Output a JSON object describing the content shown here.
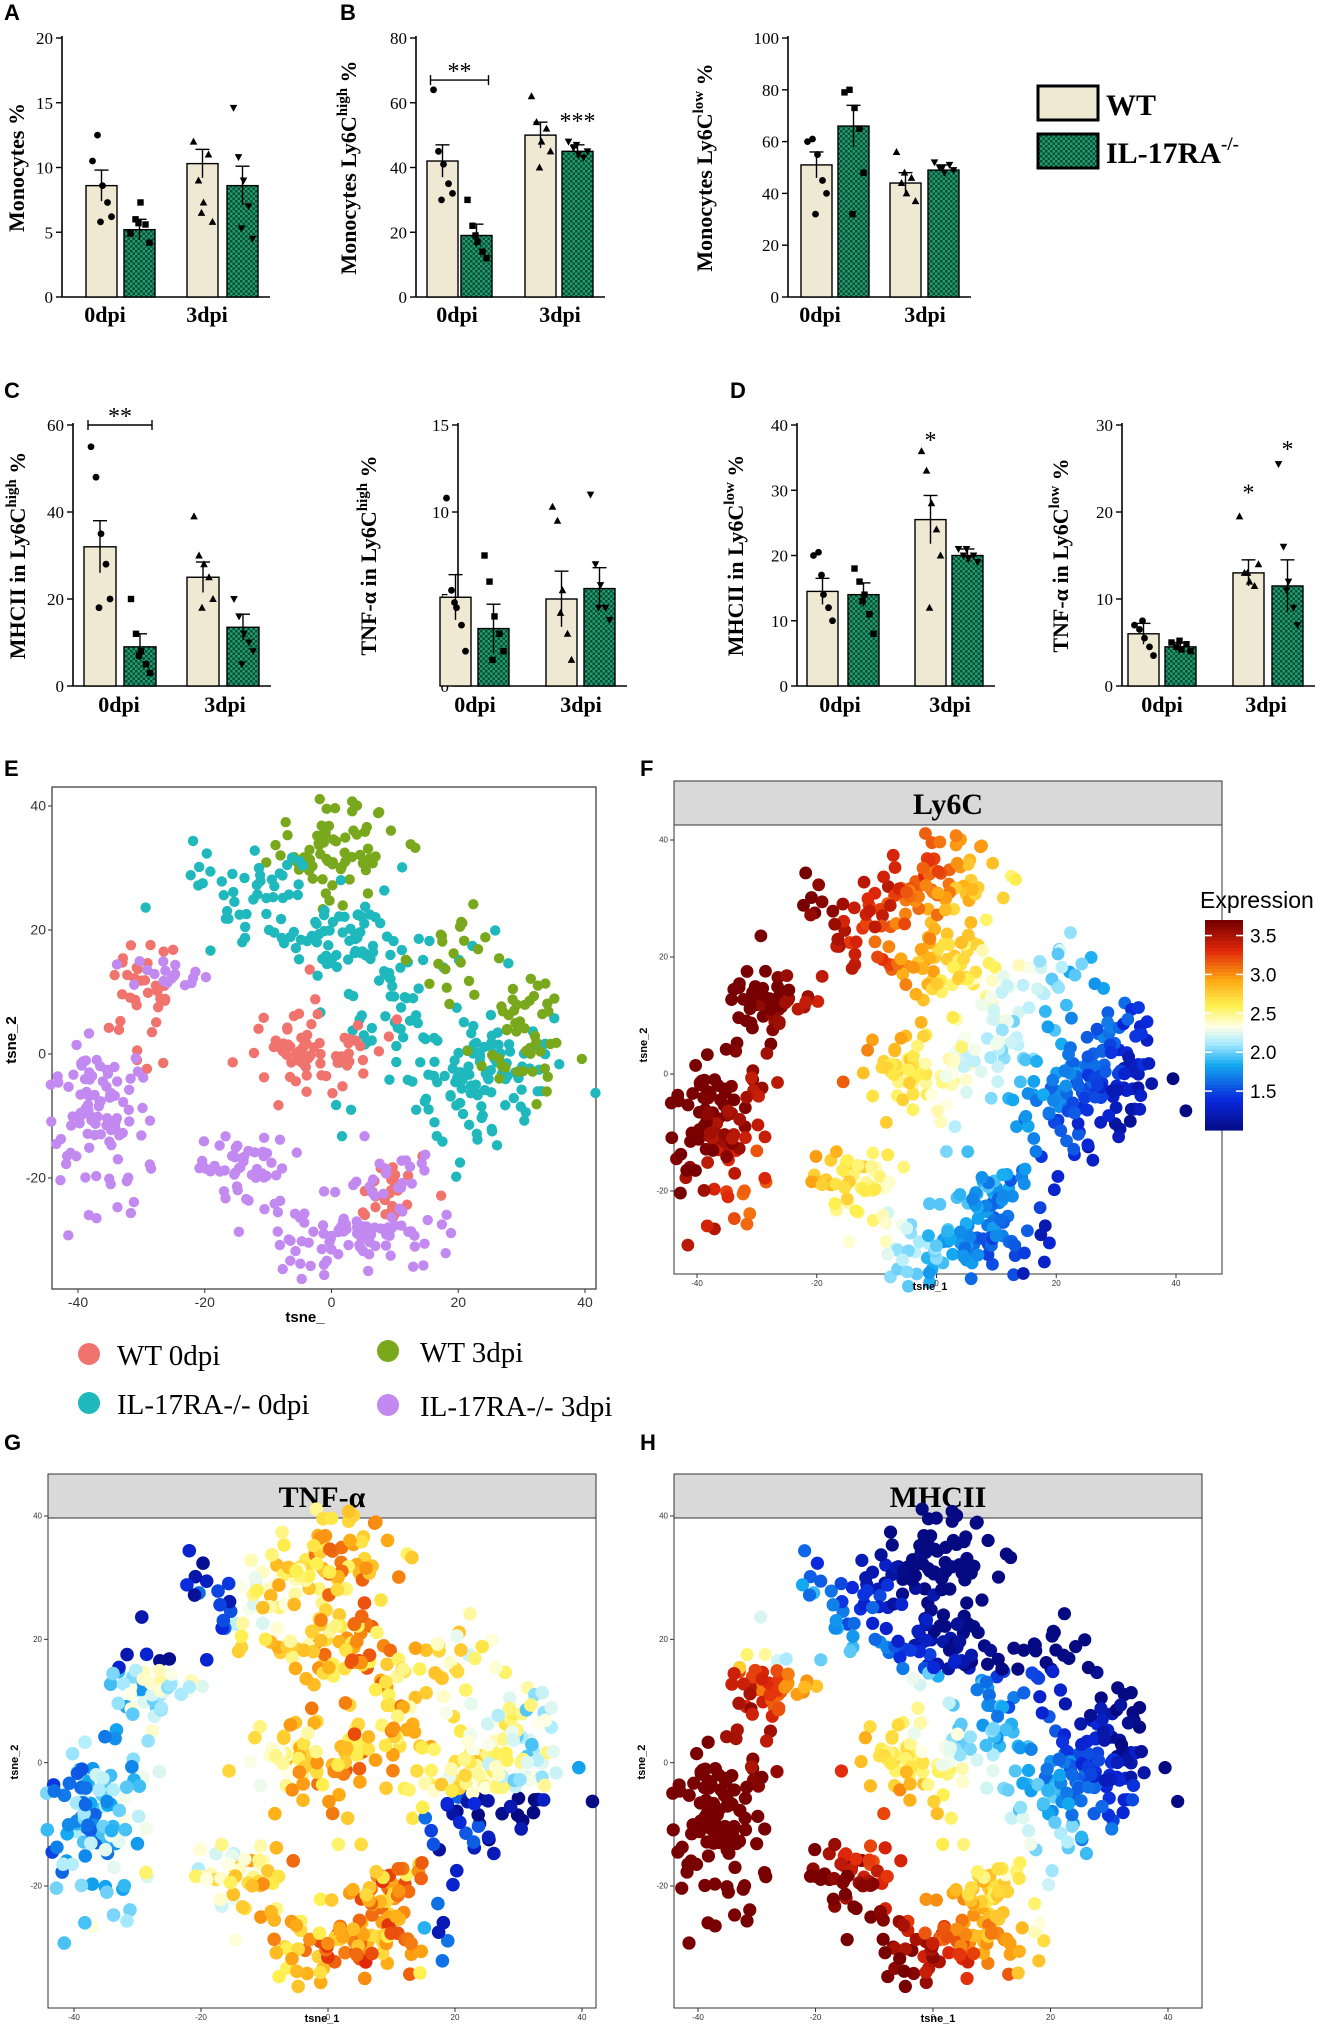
{
  "colors": {
    "wt": "#efe8d2",
    "ko": "#1f9e72",
    "ko_check": "#0b4c33",
    "wt0": "#f0736d",
    "ko0": "#1fb8bd",
    "wt3": "#7aa81c",
    "ko3": "#c28af0",
    "facet_bg": "#d9d9d9"
  },
  "legend": {
    "wt": "WT",
    "ko": "IL-17RA",
    "ko_sup": "-/-"
  },
  "chart_data": [
    {
      "id": "A",
      "panel": "A",
      "type": "bar",
      "ylabel": "Monocytes %",
      "ysup": "",
      "ylabel_after": "",
      "ylim": [
        0,
        20
      ],
      "yticks": [
        0,
        5,
        10,
        15,
        20
      ],
      "categories": [
        "0dpi",
        "3dpi"
      ],
      "series": [
        {
          "name": "WT",
          "values": [
            8.6,
            10.3
          ],
          "errors": [
            1.2,
            1.1
          ]
        },
        {
          "name": "IL-17RA-/-",
          "values": [
            5.2,
            8.6
          ],
          "errors": [
            0.8,
            1.5
          ]
        }
      ],
      "points": [
        [
          10.5,
          12.5,
          8.6,
          7.3,
          6.2,
          5.8
        ],
        [
          4.9,
          6.0,
          7.3,
          5.6,
          4.2,
          5.7
        ],
        [
          12.0,
          9.0,
          7.3,
          11.0,
          5.8,
          6.5
        ],
        [
          14.6,
          10.8,
          9.0,
          7.0,
          4.5,
          5.3
        ]
      ],
      "sig": []
    },
    {
      "id": "B1",
      "panel": "B",
      "type": "bar",
      "ylabel": "Monocytes Ly6C",
      "ysup": "high",
      "ylabel_after": " %",
      "ylim": [
        0,
        80
      ],
      "yticks": [
        0,
        20,
        40,
        60,
        80
      ],
      "categories": [
        "0dpi",
        "3dpi"
      ],
      "series": [
        {
          "name": "WT",
          "values": [
            42,
            50
          ],
          "errors": [
            5,
            4
          ]
        },
        {
          "name": "IL-17RA-/-",
          "values": [
            19,
            45
          ],
          "errors": [
            3.5,
            2
          ]
        }
      ],
      "points": [
        [
          64,
          45,
          41,
          35,
          32,
          30
        ],
        [
          30,
          22,
          17,
          14,
          12,
          19
        ],
        [
          62,
          54,
          48,
          52,
          45,
          40
        ],
        [
          48,
          46,
          44,
          43,
          45,
          47
        ]
      ],
      "sig": [
        {
          "text": "**",
          "bracket": [
            0,
            1
          ],
          "y": 67
        },
        {
          "text": "***",
          "bar": 3,
          "y": 55
        }
      ]
    },
    {
      "id": "B2",
      "panel": "",
      "type": "bar",
      "ylabel": "Monocytes Ly6C",
      "ysup": "low",
      "ylabel_after": " %",
      "ylim": [
        0,
        100
      ],
      "yticks": [
        0,
        20,
        40,
        60,
        80,
        100
      ],
      "categories": [
        "0dpi",
        "3dpi"
      ],
      "series": [
        {
          "name": "WT",
          "values": [
            51,
            44
          ],
          "errors": [
            5,
            4
          ]
        },
        {
          "name": "IL-17RA-/-",
          "values": [
            66,
            49
          ],
          "errors": [
            8,
            2
          ]
        }
      ],
      "points": [
        [
          60,
          61,
          55,
          45,
          40,
          32
        ],
        [
          79,
          80,
          73,
          65,
          48,
          32
        ],
        [
          56,
          44,
          40,
          46,
          37,
          48
        ],
        [
          52,
          50,
          48,
          51,
          49,
          50
        ]
      ],
      "sig": []
    },
    {
      "id": "C1",
      "panel": "C",
      "type": "bar",
      "ylabel": "MHCII in Ly6C",
      "ysup": "high",
      "ylabel_after": " %",
      "ylim": [
        0,
        60
      ],
      "yticks": [
        0,
        20,
        40,
        60
      ],
      "categories": [
        "0dpi",
        "3dpi"
      ],
      "series": [
        {
          "name": "WT",
          "values": [
            32,
            25
          ],
          "errors": [
            6,
            3.5
          ]
        },
        {
          "name": "IL-17RA-/-",
          "values": [
            9,
            13.5
          ],
          "errors": [
            3,
            3
          ]
        }
      ],
      "points": [
        [
          55,
          48,
          35,
          28,
          20,
          18
        ],
        [
          20,
          12,
          8,
          5,
          3,
          7
        ],
        [
          39,
          30,
          28,
          25,
          20,
          18
        ],
        [
          20,
          16,
          12,
          10,
          8,
          5
        ]
      ],
      "sig": [
        {
          "text": "**",
          "bracket": [
            0,
            1
          ],
          "y": 60
        }
      ]
    },
    {
      "id": "C2",
      "panel": "",
      "type": "bar",
      "ylabel": "TNF-α in Ly6C",
      "ysup": "high",
      "ylabel_after": " %",
      "ylim": [
        0,
        15
      ],
      "yticks": [
        0,
        5,
        10,
        15
      ],
      "categories": [
        "0dpi",
        "3dpi"
      ],
      "series": [
        {
          "name": "WT",
          "values": [
            5.1,
            5.0
          ],
          "errors": [
            1.3,
            1.6
          ]
        },
        {
          "name": "IL-17RA-/-",
          "values": [
            3.3,
            5.6
          ],
          "errors": [
            1.4,
            1.2
          ]
        }
      ],
      "points": [
        [
          10.8,
          5.5,
          4.5,
          3.5,
          2.0,
          4.8
        ],
        [
          7.5,
          6.0,
          4.0,
          3.0,
          2.0,
          1.5
        ],
        [
          10.3,
          9.5,
          5.5,
          3.0,
          1.5,
          4.2
        ],
        [
          11.0,
          7.0,
          5.8,
          4.5,
          3.8,
          4.5
        ]
      ],
      "sig": []
    },
    {
      "id": "D1",
      "panel": "D",
      "type": "bar",
      "ylabel": "MHCII in Ly6C",
      "ysup": "low",
      "ylabel_after": " %",
      "ylim": [
        0,
        40
      ],
      "yticks": [
        0,
        10,
        20,
        30,
        40
      ],
      "categories": [
        "0dpi",
        "3dpi"
      ],
      "series": [
        {
          "name": "WT",
          "values": [
            14.5,
            25.5
          ],
          "errors": [
            2.0,
            3.7
          ]
        },
        {
          "name": "IL-17RA-/-",
          "values": [
            14,
            20
          ],
          "errors": [
            1.8,
            1.0
          ]
        }
      ],
      "points": [
        [
          20,
          20.5,
          14,
          12,
          10,
          17
        ],
        [
          18,
          16,
          14,
          11,
          8,
          13
        ],
        [
          36,
          33,
          28,
          24,
          20,
          12
        ],
        [
          21,
          20,
          19.5,
          20,
          19,
          21
        ]
      ],
      "sig": [
        {
          "text": "*",
          "bar": 2,
          "y": 38
        }
      ]
    },
    {
      "id": "D2",
      "panel": "",
      "type": "bar",
      "ylabel": "TNF-α in Ly6C",
      "ysup": "low",
      "ylabel_after": " %",
      "ylim": [
        0,
        30
      ],
      "yticks": [
        0,
        10,
        20,
        30
      ],
      "categories": [
        "0dpi",
        "3dpi"
      ],
      "series": [
        {
          "name": "WT",
          "values": [
            6,
            13
          ],
          "errors": [
            1.2,
            1.5
          ]
        },
        {
          "name": "IL-17RA-/-",
          "values": [
            4.5,
            11.5
          ],
          "errors": [
            0.5,
            3
          ]
        }
      ],
      "points": [
        [
          7,
          6.5,
          5.5,
          4.5,
          3.5,
          7.5
        ],
        [
          5,
          4.5,
          4.2,
          4.8,
          4.0,
          5.2
        ],
        [
          19.5,
          13,
          12,
          11.5,
          14,
          13
        ],
        [
          25.5,
          16,
          12,
          9,
          7,
          11
        ]
      ],
      "sig": [
        {
          "text": "*",
          "bar": 2,
          "y": 22.5
        },
        {
          "text": "*",
          "bar": 3,
          "y": 27.5
        }
      ]
    }
  ],
  "tsne": {
    "xticks": [
      -40,
      -20,
      0,
      20,
      40
    ],
    "yticks": [
      -20,
      0,
      20,
      40
    ],
    "panel_E": {
      "panel": "E",
      "xlabel": "tsne_",
      "ylabel": "tsne_2"
    },
    "panel_F": {
      "panel": "F",
      "title": "Ly6C",
      "xlabel": "tsne_1",
      "ylabel": "tsne_2"
    },
    "panel_G": {
      "panel": "G",
      "title": "TNF-α",
      "xlabel": "tsne_1",
      "ylabel": "tsne_2"
    },
    "panel_H": {
      "panel": "H",
      "title": "MHCII",
      "xlabel": "tsne_1",
      "ylabel": "tsne_2"
    },
    "colorbar": {
      "title": "Expression",
      "ticks": [
        3.5,
        3.0,
        2.5,
        2.0,
        1.5
      ],
      "range": [
        1.0,
        3.7
      ]
    },
    "groups": [
      {
        "key": "wt0",
        "label": "WT 0dpi"
      },
      {
        "key": "wt3",
        "label": "WT 3dpi"
      },
      {
        "key": "ko0",
        "label": "IL-17RA-/- 0dpi"
      },
      {
        "key": "ko3",
        "label": "IL-17RA-/- 3dpi"
      }
    ]
  }
}
